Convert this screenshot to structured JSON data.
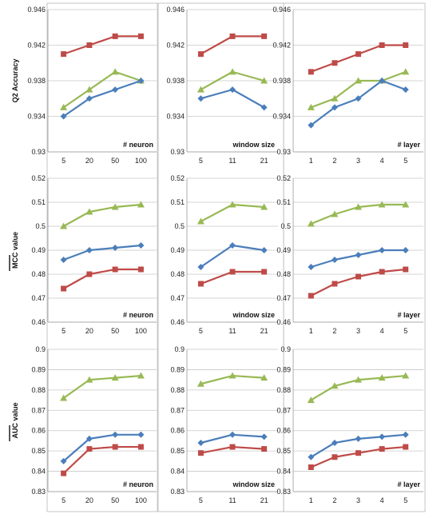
{
  "chart_data": {
    "type": "line",
    "colors": {
      "blue": "#4A7EBB",
      "red": "#BE4B48",
      "green": "#98B954",
      "grid": "#c8c8c8",
      "frame": "#888888"
    },
    "rows": [
      {
        "ylabel": "Q2    Accuracy",
        "ticks": [
          "0.946",
          "0.942",
          "0.938",
          "0.934",
          "0.93"
        ],
        "ylim": [
          0.93,
          0.946
        ],
        "panels": [
          {
            "xlabel": "# neuron",
            "categories": [
              "5",
              "20",
              "50",
              "100"
            ],
            "series": {
              "blue": [
                0.934,
                0.936,
                0.937,
                0.938
              ],
              "red": [
                0.941,
                0.942,
                0.943,
                0.943
              ],
              "green": [
                0.935,
                0.937,
                0.939,
                0.938
              ]
            }
          },
          {
            "xlabel": "window size",
            "categories": [
              "5",
              "11",
              "21"
            ],
            "series": {
              "blue": [
                0.936,
                0.937,
                0.935
              ],
              "red": [
                0.941,
                0.943,
                0.943
              ],
              "green": [
                0.937,
                0.939,
                0.938
              ]
            }
          },
          {
            "xlabel": "# layer",
            "categories": [
              "1",
              "2",
              "3",
              "4",
              "5"
            ],
            "series": {
              "blue": [
                0.933,
                0.935,
                0.936,
                0.938,
                0.937
              ],
              "red": [
                0.939,
                0.94,
                0.941,
                0.942,
                0.942
              ],
              "green": [
                0.935,
                0.936,
                0.938,
                0.938,
                0.939
              ]
            }
          }
        ]
      },
      {
        "ylabel": "MCC value",
        "ticks": [
          "0.52",
          "0.51",
          "0.5",
          "0.49",
          "0.48",
          "0.47",
          "0.46"
        ],
        "ylim": [
          0.46,
          0.52
        ],
        "panels": [
          {
            "xlabel": "# neuron",
            "categories": [
              "5",
              "20",
              "50",
              "100"
            ],
            "series": {
              "blue": [
                0.486,
                0.49,
                0.491,
                0.492
              ],
              "red": [
                0.474,
                0.48,
                0.482,
                0.482
              ],
              "green": [
                0.5,
                0.506,
                0.508,
                0.509
              ]
            }
          },
          {
            "xlabel": "window size",
            "categories": [
              "5",
              "11",
              "21"
            ],
            "series": {
              "blue": [
                0.483,
                0.492,
                0.49
              ],
              "red": [
                0.476,
                0.481,
                0.481
              ],
              "green": [
                0.502,
                0.509,
                0.508
              ]
            }
          },
          {
            "xlabel": "# layer",
            "categories": [
              "1",
              "2",
              "3",
              "4",
              "5"
            ],
            "series": {
              "blue": [
                0.483,
                0.486,
                0.488,
                0.49,
                0.49
              ],
              "red": [
                0.471,
                0.476,
                0.479,
                0.481,
                0.482
              ],
              "green": [
                0.501,
                0.505,
                0.508,
                0.509,
                0.509
              ]
            }
          }
        ]
      },
      {
        "ylabel": "AUC value",
        "ticks": [
          "0.9",
          "0.89",
          "0.88",
          "0.87",
          "0.86",
          "0.85",
          "0.84",
          "0.83"
        ],
        "ylim": [
          0.83,
          0.9
        ],
        "panels": [
          {
            "xlabel": "# neuron",
            "categories": [
              "5",
              "20",
              "50",
              "100"
            ],
            "series": {
              "blue": [
                0.845,
                0.856,
                0.858,
                0.858
              ],
              "red": [
                0.839,
                0.851,
                0.852,
                0.852
              ],
              "green": [
                0.876,
                0.885,
                0.886,
                0.887
              ]
            }
          },
          {
            "xlabel": "window size",
            "categories": [
              "5",
              "11",
              "21"
            ],
            "series": {
              "blue": [
                0.854,
                0.858,
                0.857
              ],
              "red": [
                0.849,
                0.852,
                0.851
              ],
              "green": [
                0.883,
                0.887,
                0.886
              ]
            }
          },
          {
            "xlabel": "# layer",
            "categories": [
              "1",
              "2",
              "3",
              "4",
              "5"
            ],
            "series": {
              "blue": [
                0.847,
                0.854,
                0.856,
                0.857,
                0.858
              ],
              "red": [
                0.842,
                0.847,
                0.849,
                0.851,
                0.852
              ],
              "green": [
                0.875,
                0.882,
                0.885,
                0.886,
                0.887
              ]
            }
          }
        ]
      }
    ]
  }
}
